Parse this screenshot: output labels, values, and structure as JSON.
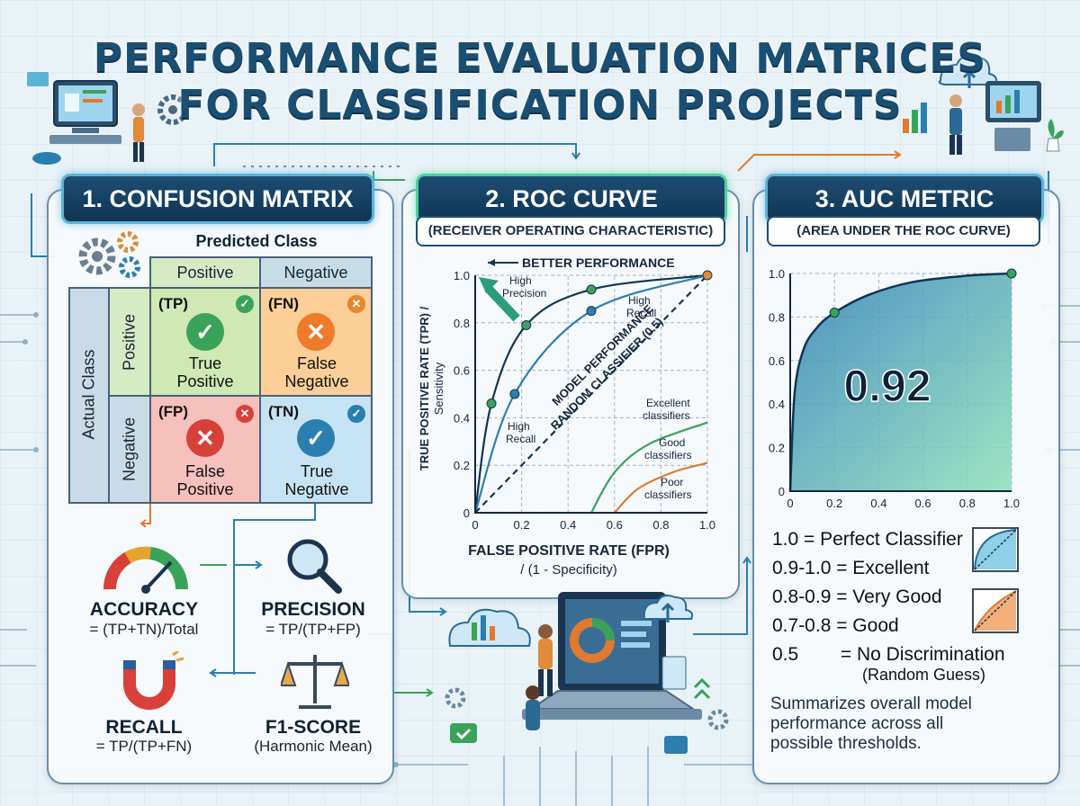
{
  "title": {
    "line1": "PERFORMANCE EVALUATION MATRICES",
    "line2": "FOR CLASSIFICATION PROJECTS"
  },
  "confusion": {
    "heading": "1. CONFUSION MATRIX",
    "predicted_label": "Predicted Class",
    "actual_label": "Actual Class",
    "col_positive": "Positive",
    "col_negative": "Negative",
    "row_positive": "Positive",
    "row_negative": "Negative",
    "cells": [
      {
        "code": "(TP)",
        "line1": "True",
        "line2": "Positive",
        "color": "#cfe8b4",
        "icon": "check-circle-icon"
      },
      {
        "code": "(FN)",
        "line1": "False",
        "line2": "Negative",
        "color": "#fbcf97",
        "icon": "x-circle-icon"
      },
      {
        "code": "(FP)",
        "line1": "False",
        "line2": "Positive",
        "color": "#f6c0bd",
        "icon": "x-circle-icon"
      },
      {
        "code": "(TN)",
        "line1": "True",
        "line2": "Negative",
        "color": "#c6e3f3",
        "icon": "check-circle-icon"
      }
    ]
  },
  "metrics": {
    "accuracy": {
      "name": "ACCURACY",
      "formula": "= (TP+TN)/Total",
      "icon": "gauge-icon"
    },
    "precision": {
      "name": "PRECISION",
      "formula": "= TP/(TP+FP)",
      "icon": "magnifier-icon"
    },
    "recall": {
      "name": "RECALL",
      "formula": "= TP/(TP+FN)",
      "icon": "magnet-icon"
    },
    "f1": {
      "name": "F1-SCORE",
      "formula": "(Harmonic Mean)",
      "icon": "scales-icon"
    }
  },
  "roc": {
    "heading": "2. ROC CURVE",
    "subheading": "(RECEIVER OPERATING CHARACTERISTIC)",
    "better": "BETTER PERFORMANCE",
    "xlabel_line1": "FALSE POSITIVE RATE (FPR)",
    "xlabel_line2": "/ (1 - Specificity)",
    "ylabel_line1": "TRUE POSITIVE RATE (TPR) /",
    "ylabel_line2": "Sensitivity",
    "diag_line1": "MODEL PERFORMANCE",
    "diag_line2": "RANDOM CLASSIFIER (0.5)",
    "hp1": "High",
    "hp2": "Precision",
    "hr1": "High",
    "hr2": "Recall",
    "hr3": "High",
    "hr4": "Recall",
    "ex1": "Excellent",
    "ex2": "classifiers",
    "gd1": "Good",
    "gd2": "classifiers",
    "pr1": "Poor",
    "pr2": "classifiers"
  },
  "auc": {
    "heading": "3. AUC METRIC",
    "subheading": "(AREA UNDER THE ROC CURVE)",
    "value": "0.92",
    "scale": [
      "1.0 = Perfect Classifier",
      "0.9-1.0 = Excellent",
      "0.8-0.9 = Very Good",
      "0.7-0.8 = Good",
      "0.5        = No Discrimination"
    ],
    "scale_note": "(Random Guess)",
    "summary_line1": "Summarizes overall model",
    "summary_line2": "performance across all",
    "summary_line3": "possible thresholds."
  },
  "chart_data": [
    {
      "type": "line",
      "title": "2. ROC CURVE",
      "xlabel": "FALSE POSITIVE RATE (FPR) / (1 - Specificity)",
      "ylabel": "TRUE POSITIVE RATE (TPR) / Sensitivity",
      "xlim": [
        0,
        1.0
      ],
      "ylim": [
        0,
        1.0
      ],
      "xticks": [
        "0",
        "0.2",
        "0.4",
        "0.6",
        "0.8",
        "1.0"
      ],
      "yticks": [
        "0",
        "0.2",
        "0.4",
        "0.6",
        "0.8",
        "1.0"
      ],
      "grid": true,
      "series": [
        {
          "x": [
            0,
            0.07,
            0.22,
            0.5,
            1.0
          ],
          "y": [
            0,
            0.46,
            0.79,
            0.94,
            1.0
          ],
          "color": "#0f3553"
        },
        {
          "x": [
            0,
            0.17,
            0.5,
            1.0
          ],
          "y": [
            0,
            0.5,
            0.85,
            1.0
          ],
          "color": "#2a7fb0"
        },
        {
          "x": [
            0,
            1.0
          ],
          "y": [
            0,
            1.0
          ],
          "color": "#0f3553",
          "style": "dashed"
        },
        {
          "x": [
            0.5,
            0.6,
            0.75,
            1.0
          ],
          "y": [
            0,
            0.17,
            0.29,
            0.38
          ],
          "color": "#3aa35a"
        },
        {
          "x": [
            0.6,
            0.7,
            0.85,
            1.0
          ],
          "y": [
            0,
            0.1,
            0.17,
            0.21
          ],
          "color": "#e07a2e"
        }
      ],
      "markers": [
        {
          "x": 0.07,
          "y": 0.46,
          "color": "#3aa35a"
        },
        {
          "x": 0.22,
          "y": 0.79,
          "color": "#3aa35a"
        },
        {
          "x": 0.5,
          "y": 0.94,
          "color": "#3aa35a"
        },
        {
          "x": 0.17,
          "y": 0.5,
          "color": "#2a7fb0"
        },
        {
          "x": 0.5,
          "y": 0.85,
          "color": "#2a7fb0"
        },
        {
          "x": 1.0,
          "y": 1.0,
          "color": "#e08a3a"
        }
      ]
    },
    {
      "type": "area",
      "title": "3. AUC METRIC",
      "xlim": [
        0,
        1.0
      ],
      "ylim": [
        0,
        1.0
      ],
      "xticks": [
        "0",
        "0.2",
        "0.4",
        "0.6",
        "0.8",
        "1.0"
      ],
      "yticks": [
        "0",
        "0.2",
        "0.4",
        "0.6",
        "0.8",
        "1.0"
      ],
      "grid": true,
      "x": [
        0,
        0.02,
        0.06,
        0.12,
        0.2,
        0.35,
        0.55,
        0.8,
        1.0
      ],
      "y": [
        0,
        0.45,
        0.65,
        0.75,
        0.82,
        0.9,
        0.96,
        0.99,
        1.0
      ],
      "markers": [
        {
          "x": 0.2,
          "y": 0.82
        },
        {
          "x": 1.0,
          "y": 1.0
        }
      ],
      "value": 0.92
    }
  ],
  "colors": {
    "navy": "#0f3553",
    "accent": "#5ab4d6",
    "green": "#3aa35a",
    "orange": "#e07a2e",
    "red": "#e04a3e",
    "blue": "#2a7fb0"
  }
}
